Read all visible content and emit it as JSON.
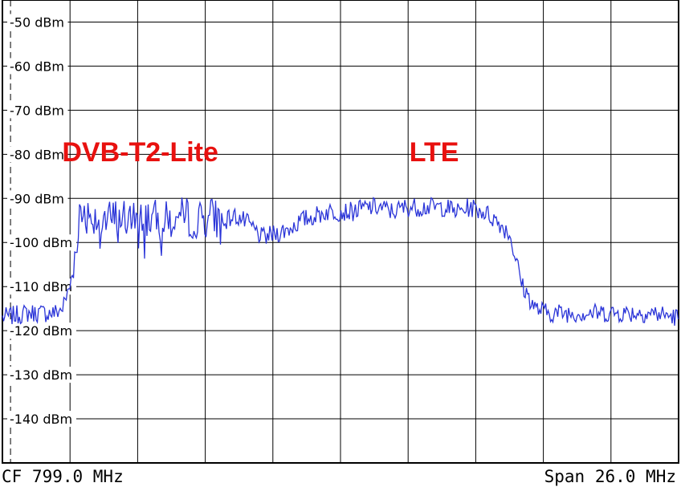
{
  "chart_data": {
    "type": "line",
    "ylabel_unit": "dBm",
    "ylim": [
      -150,
      -45
    ],
    "y_ticks": [
      {
        "value": -50,
        "label": "-50 dBm"
      },
      {
        "value": -60,
        "label": "-60 dBm"
      },
      {
        "value": -70,
        "label": "-70 dBm"
      },
      {
        "value": -80,
        "label": "-80 dBm"
      },
      {
        "value": -90,
        "label": "-90 dBm"
      },
      {
        "value": -100,
        "label": "-100 dBm"
      },
      {
        "value": -110,
        "label": "-110 dBm"
      },
      {
        "value": -120,
        "label": "-120 dBm"
      },
      {
        "value": -130,
        "label": "-130 dBm"
      },
      {
        "value": -140,
        "label": "-140 dBm"
      }
    ],
    "x_divisions": 10,
    "center_frequency_label": "CF 799.0 MHz",
    "span_label": "Span 26.0 MHz",
    "center_frequency_mhz": 799.0,
    "span_mhz": 26.0,
    "grid": true,
    "trace_color": "#2b35d8",
    "annotation_color": "#e8110f",
    "annotations": [
      {
        "text": "DVB-T2-Lite",
        "x_mhz": 791.3,
        "y": -79
      },
      {
        "text": "LTE",
        "x_mhz": 802.6,
        "y": -79
      }
    ],
    "series": [
      {
        "x": [
          786.0,
          787.0,
          788.0,
          788.3,
          788.6,
          789.0,
          789.5,
          790.0,
          790.5,
          791.0,
          791.5,
          792.0,
          792.5,
          793.0,
          793.5,
          794.0,
          794.5,
          795.0,
          795.5,
          796.0,
          796.5,
          797.0,
          797.5,
          798.0,
          798.5,
          799.0,
          799.5,
          800.0,
          800.5,
          801.0,
          801.5,
          802.0,
          802.5,
          803.0,
          803.5,
          804.0,
          804.5,
          805.0,
          805.5,
          806.0,
          806.5,
          807.0,
          808.0,
          809.0,
          810.0,
          811.0,
          812.0
        ],
        "y": [
          -117,
          -116,
          -116,
          -115,
          -110,
          -93,
          -94,
          -95,
          -94,
          -95,
          -94,
          -95,
          -95,
          -94,
          -95,
          -94,
          -95,
          -94,
          -96,
          -99,
          -98,
          -97,
          -95,
          -94,
          -93,
          -93,
          -93,
          -92,
          -92,
          -93,
          -92,
          -92,
          -92,
          -92,
          -93,
          -92,
          -93,
          -95,
          -98,
          -110,
          -115,
          -116,
          -116,
          -116,
          -116,
          -116,
          -117
        ]
      }
    ]
  },
  "colors": {
    "grid": "#000000",
    "background": "#ffffff"
  }
}
